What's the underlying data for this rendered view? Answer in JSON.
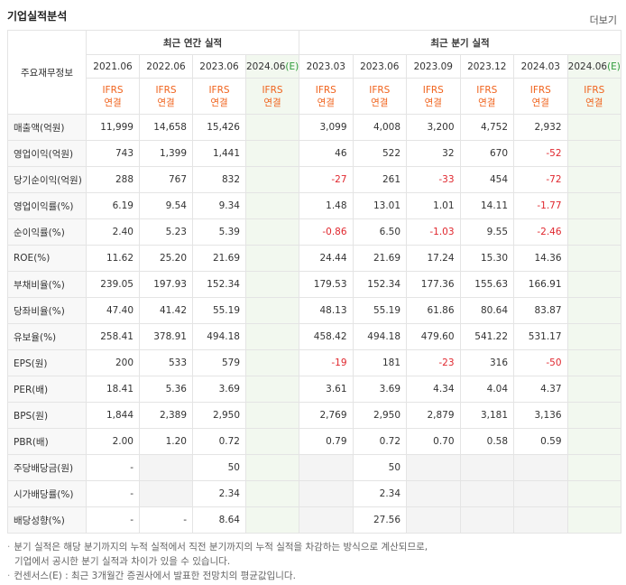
{
  "header": {
    "title": "기업실적분석",
    "more": "더보기"
  },
  "table": {
    "corner": "주요재무정보",
    "groups": [
      "최근 연간 실적",
      "최근 분기 실적"
    ],
    "columns": [
      {
        "date": "2021.06",
        "std": "IFRS",
        "basis": "연결"
      },
      {
        "date": "2022.06",
        "std": "IFRS",
        "basis": "연결"
      },
      {
        "date": "2023.06",
        "std": "IFRS",
        "basis": "연결"
      },
      {
        "date": "2024.06",
        "mark": "(E)",
        "std": "IFRS",
        "basis": "연결"
      },
      {
        "date": "2023.03",
        "std": "IFRS",
        "basis": "연결"
      },
      {
        "date": "2023.06",
        "std": "IFRS",
        "basis": "연결"
      },
      {
        "date": "2023.09",
        "std": "IFRS",
        "basis": "연결"
      },
      {
        "date": "2023.12",
        "std": "IFRS",
        "basis": "연결"
      },
      {
        "date": "2024.03",
        "std": "IFRS",
        "basis": "연결"
      },
      {
        "date": "2024.06",
        "mark": "(E)",
        "std": "IFRS",
        "basis": "연결"
      }
    ],
    "rows": [
      {
        "label": "매출액(억원)",
        "cells": [
          "11,999",
          "14,658",
          "15,426",
          null,
          "3,099",
          "4,008",
          "3,200",
          "4,752",
          "2,932",
          null
        ]
      },
      {
        "label": "영업이익(억원)",
        "cells": [
          "743",
          "1,399",
          "1,441",
          null,
          "46",
          "522",
          "32",
          "670",
          "-52",
          null
        ]
      },
      {
        "label": "당기순이익(억원)",
        "cells": [
          "288",
          "767",
          "832",
          null,
          "-27",
          "261",
          "-33",
          "454",
          "-72",
          null
        ]
      },
      {
        "label": "영업이익률(%)",
        "cells": [
          "6.19",
          "9.54",
          "9.34",
          null,
          "1.48",
          "13.01",
          "1.01",
          "14.11",
          "-1.77",
          null
        ]
      },
      {
        "label": "순이익률(%)",
        "cells": [
          "2.40",
          "5.23",
          "5.39",
          null,
          "-0.86",
          "6.50",
          "-1.03",
          "9.55",
          "-2.46",
          null
        ]
      },
      {
        "label": "ROE(%)",
        "cells": [
          "11.62",
          "25.20",
          "21.69",
          null,
          "24.44",
          "21.69",
          "17.24",
          "15.30",
          "14.36",
          null
        ]
      },
      {
        "label": "부채비율(%)",
        "cells": [
          "239.05",
          "197.93",
          "152.34",
          null,
          "179.53",
          "152.34",
          "177.36",
          "155.63",
          "166.91",
          null
        ]
      },
      {
        "label": "당좌비율(%)",
        "cells": [
          "47.40",
          "41.42",
          "55.19",
          null,
          "48.13",
          "55.19",
          "61.86",
          "80.64",
          "83.87",
          null
        ]
      },
      {
        "label": "유보율(%)",
        "cells": [
          "258.41",
          "378.91",
          "494.18",
          null,
          "458.42",
          "494.18",
          "479.60",
          "541.22",
          "531.17",
          null
        ]
      },
      {
        "label": "EPS(원)",
        "cells": [
          "200",
          "533",
          "579",
          null,
          "-19",
          "181",
          "-23",
          "316",
          "-50",
          null
        ]
      },
      {
        "label": "PER(배)",
        "cells": [
          "18.41",
          "5.36",
          "3.69",
          null,
          "3.61",
          "3.69",
          "4.34",
          "4.04",
          "4.37",
          null
        ]
      },
      {
        "label": "BPS(원)",
        "cells": [
          "1,844",
          "2,389",
          "2,950",
          null,
          "2,769",
          "2,950",
          "2,879",
          "3,181",
          "3,136",
          null
        ]
      },
      {
        "label": "PBR(배)",
        "cells": [
          "2.00",
          "1.20",
          "0.72",
          null,
          "0.79",
          "0.72",
          "0.70",
          "0.58",
          "0.59",
          null
        ]
      },
      {
        "label": "주당배당금(원)",
        "cells": [
          "-",
          null,
          "50",
          null,
          null,
          "50",
          null,
          null,
          null,
          null
        ]
      },
      {
        "label": "시가배당률(%)",
        "cells": [
          "-",
          null,
          "2.34",
          null,
          null,
          "2.34",
          null,
          null,
          null,
          null
        ]
      },
      {
        "label": "배당성향(%)",
        "cells": [
          "-",
          "-",
          "8.64",
          null,
          null,
          "27.56",
          null,
          null,
          null,
          null
        ]
      }
    ]
  },
  "notes": [
    "분기 실적은 해당 분기까지의 누적 실적에서 직전 분기까지의 누적 실적을 차감하는 방식으로 계산되므로,",
    "기업에서 공시한 분기 실적과 차이가 있을 수 있습니다.",
    "컨센서스(E) : 최근 3개월간 증권사에서 발표한 전망치의 평균값입니다."
  ]
}
